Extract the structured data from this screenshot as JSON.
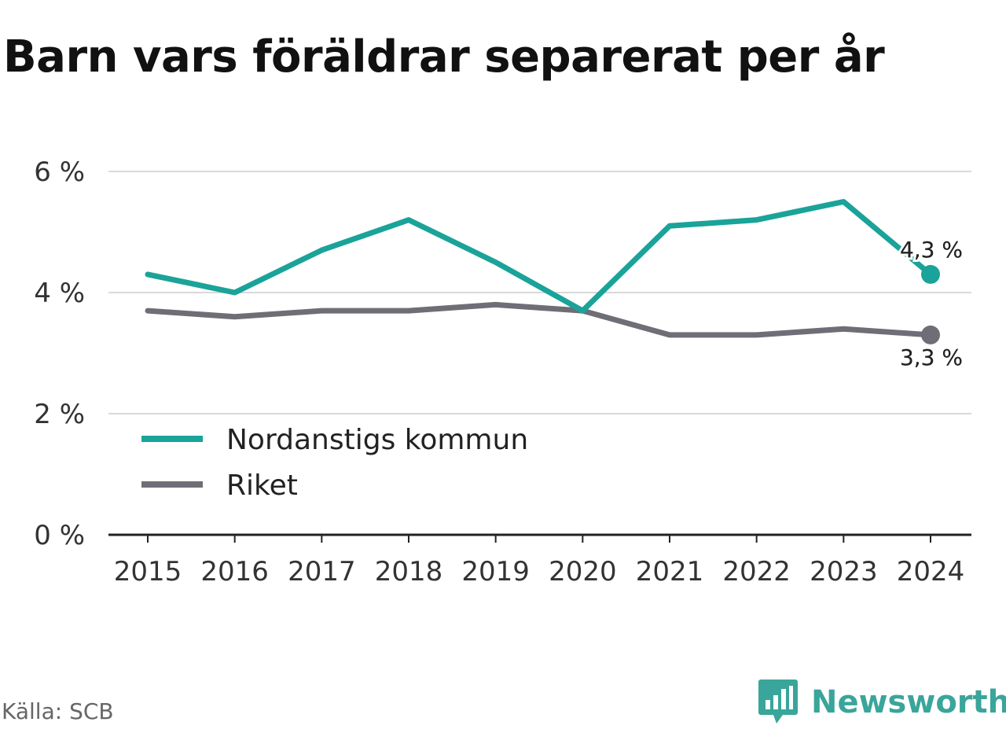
{
  "title": "Barn vars föräldrar separerat per år",
  "source": "Källa: SCB",
  "brand": {
    "name": "Newsworthy",
    "icon": "newsworthy-logo-icon",
    "color": "#3aa59a"
  },
  "chart_data": {
    "type": "line",
    "title": "Barn vars föräldrar separerat per år",
    "xlabel": "",
    "ylabel": "",
    "x": [
      "2015",
      "2016",
      "2017",
      "2018",
      "2019",
      "2020",
      "2021",
      "2022",
      "2023",
      "2024"
    ],
    "yticks": [
      "0 %",
      "2 %",
      "4 %",
      "6 %"
    ],
    "ylim": [
      0,
      6
    ],
    "grid": true,
    "legend_position": "bottom-left",
    "series": [
      {
        "name": "Nordanstigs kommun",
        "color": "#1aa399",
        "values": [
          4.3,
          4.0,
          4.7,
          5.2,
          4.5,
          3.7,
          5.1,
          5.2,
          5.5,
          4.3
        ],
        "end_label": "4,3 %"
      },
      {
        "name": "Riket",
        "color": "#6e6e76",
        "values": [
          3.7,
          3.6,
          3.7,
          3.7,
          3.8,
          3.7,
          3.3,
          3.3,
          3.4,
          3.3
        ],
        "end_label": "3,3 %"
      }
    ]
  }
}
